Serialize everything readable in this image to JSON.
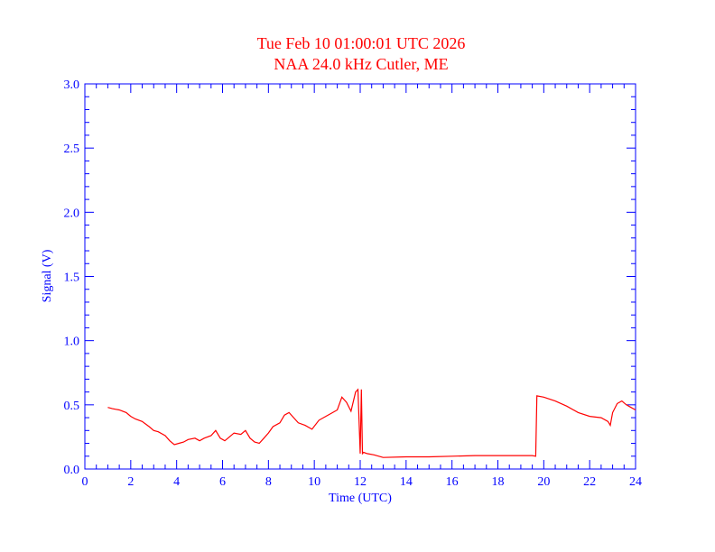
{
  "chart_data": {
    "type": "line",
    "title": "Tue Feb 10 01:00:01 UTC 2026",
    "subtitle": "NAA 24.0 kHz Cutler, ME",
    "xlabel": "Time (UTC)",
    "ylabel": "Signal (V)",
    "xlim": [
      0,
      24
    ],
    "ylim": [
      0,
      3.0
    ],
    "x_ticks": [
      "0",
      "2",
      "4",
      "6",
      "8",
      "10",
      "12",
      "14",
      "16",
      "18",
      "20",
      "22",
      "24"
    ],
    "y_ticks": [
      "0.0",
      "0.5",
      "1.0",
      "1.5",
      "2.0",
      "2.5",
      "3.0"
    ],
    "grid": false,
    "colors": {
      "axes": "#0000ff",
      "series": "#ff0000",
      "title": "#ff0000"
    },
    "series": [
      {
        "x": [
          1.0,
          1.2,
          1.5,
          1.8,
          2.0,
          2.2,
          2.5,
          2.8,
          3.0,
          3.2,
          3.5,
          3.7,
          3.9,
          4.1,
          4.3,
          4.5,
          4.8,
          5.0,
          5.2,
          5.5,
          5.7,
          5.9,
          6.1,
          6.3,
          6.5,
          6.8,
          7.0,
          7.2,
          7.4,
          7.6,
          7.8,
          8.0,
          8.2,
          8.5,
          8.7,
          8.9,
          9.1,
          9.3,
          9.6,
          9.9,
          10.2,
          10.5,
          10.8,
          11.0,
          11.2,
          11.4,
          11.6,
          11.8,
          11.9,
          12.0,
          12.05,
          12.1,
          12.15,
          12.3,
          12.6,
          13.0,
          14.0,
          15.0,
          16.0,
          17.0,
          18.0,
          19.0,
          19.5,
          19.65,
          19.7,
          20.0,
          20.5,
          21.0,
          21.5,
          22.0,
          22.5,
          22.8,
          22.9,
          23.0,
          23.2,
          23.4,
          23.6,
          23.8,
          24.0
        ],
        "y": [
          0.48,
          0.47,
          0.46,
          0.44,
          0.41,
          0.39,
          0.37,
          0.33,
          0.3,
          0.29,
          0.26,
          0.22,
          0.19,
          0.2,
          0.21,
          0.23,
          0.24,
          0.22,
          0.24,
          0.26,
          0.3,
          0.24,
          0.22,
          0.25,
          0.28,
          0.27,
          0.3,
          0.24,
          0.21,
          0.2,
          0.24,
          0.28,
          0.33,
          0.36,
          0.42,
          0.44,
          0.4,
          0.36,
          0.34,
          0.31,
          0.38,
          0.41,
          0.44,
          0.46,
          0.56,
          0.52,
          0.45,
          0.6,
          0.62,
          0.12,
          0.62,
          0.12,
          0.13,
          0.12,
          0.11,
          0.09,
          0.095,
          0.095,
          0.1,
          0.105,
          0.105,
          0.105,
          0.105,
          0.1,
          0.57,
          0.56,
          0.53,
          0.49,
          0.44,
          0.41,
          0.4,
          0.37,
          0.34,
          0.44,
          0.51,
          0.53,
          0.5,
          0.48,
          0.46
        ]
      }
    ]
  }
}
